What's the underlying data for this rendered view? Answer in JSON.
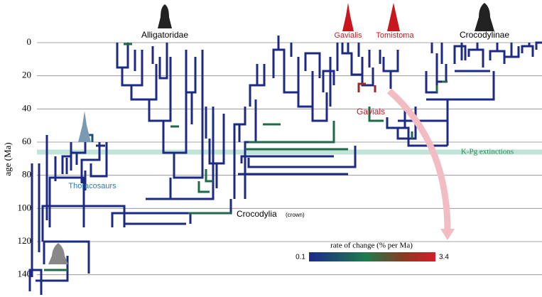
{
  "chart_data": {
    "type": "phylogeny",
    "y_label": "age (Ma)",
    "ylim": [
      0,
      150
    ],
    "yticks": [
      0,
      20,
      40,
      60,
      80,
      100,
      120,
      140
    ],
    "grid": true,
    "events": [
      {
        "label": "K-Pg extinctions",
        "value": 66
      }
    ],
    "labels": {
      "alligatoridae": "Alligatoridae",
      "gavialis": "Gavialis",
      "tomistoma": "Tomistoma",
      "crocodylinae": "Crocodylinae",
      "gavials": "Gavials",
      "thoracosaurs": "Thoracosaurs",
      "crocodylia": "Crocodylia",
      "crown": "(crown)"
    },
    "colorbar": {
      "title": "rate of change (% per Ma)",
      "range": [
        0.1,
        3.4
      ]
    }
  }
}
